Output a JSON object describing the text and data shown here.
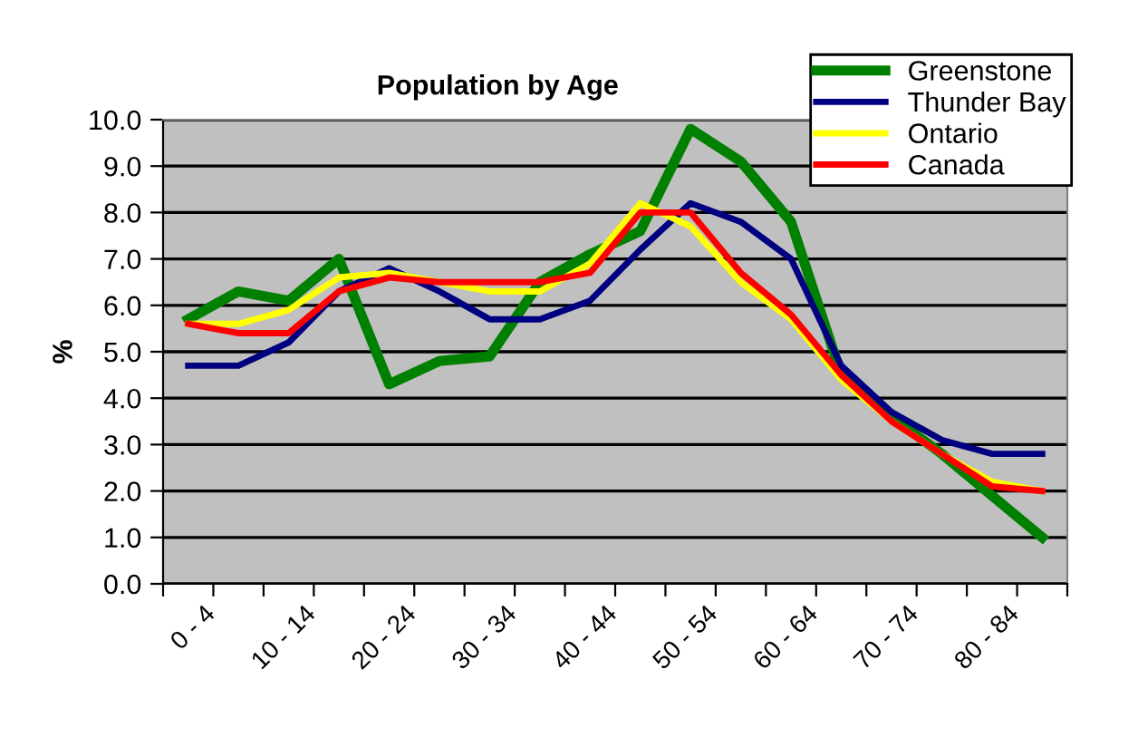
{
  "chart_data": {
    "type": "line",
    "title": "Population by Age",
    "ylabel": "%",
    "categories": [
      "0 - 4",
      null,
      "10 - 14",
      null,
      "20 - 24",
      null,
      "30 - 34",
      null,
      "40 - 44",
      null,
      "50 - 54",
      null,
      "60 - 64",
      null,
      "70 - 74",
      null,
      "80 - 84",
      null
    ],
    "series": [
      {
        "name": "Greenstone",
        "color": "#008000",
        "values": [
          5.7,
          6.3,
          6.1,
          7.0,
          4.3,
          4.8,
          4.9,
          6.5,
          7.1,
          7.6,
          9.8,
          9.1,
          7.8,
          4.5,
          3.6,
          2.8,
          1.9,
          1.0
        ]
      },
      {
        "name": "Thunder Bay",
        "color": "#000080",
        "values": [
          4.7,
          4.7,
          5.2,
          6.3,
          6.8,
          6.3,
          5.7,
          5.7,
          6.1,
          7.2,
          8.2,
          7.8,
          7.0,
          4.7,
          3.7,
          3.1,
          2.8,
          2.8
        ]
      },
      {
        "name": "Ontario",
        "color": "#ffff00",
        "values": [
          5.6,
          5.6,
          5.9,
          6.6,
          6.7,
          6.5,
          6.3,
          6.3,
          6.9,
          8.2,
          7.7,
          6.5,
          5.7,
          4.4,
          3.5,
          2.8,
          2.2,
          2.0
        ]
      },
      {
        "name": "Canada",
        "color": "#ff0000",
        "values": [
          5.6,
          5.4,
          5.4,
          6.3,
          6.6,
          6.5,
          6.5,
          6.5,
          6.7,
          8.0,
          8.0,
          6.7,
          5.8,
          4.5,
          3.5,
          2.8,
          2.1,
          2.0
        ]
      }
    ],
    "ylim": [
      0,
      10
    ],
    "yticks": [
      {
        "value": 0,
        "label": "0.0"
      },
      {
        "value": 1,
        "label": "1.0"
      },
      {
        "value": 2,
        "label": "2.0"
      },
      {
        "value": 3,
        "label": "3.0"
      },
      {
        "value": 4,
        "label": "4.0"
      },
      {
        "value": 5,
        "label": "5.0"
      },
      {
        "value": 6,
        "label": "6.0"
      },
      {
        "value": 7,
        "label": "7.0"
      },
      {
        "value": 8,
        "label": "8.0"
      },
      {
        "value": 9,
        "label": "9.0"
      },
      {
        "value": 10,
        "label": "10.0"
      }
    ],
    "grid": "y",
    "legend": "top right",
    "marker": "none",
    "line_style": "solid"
  }
}
